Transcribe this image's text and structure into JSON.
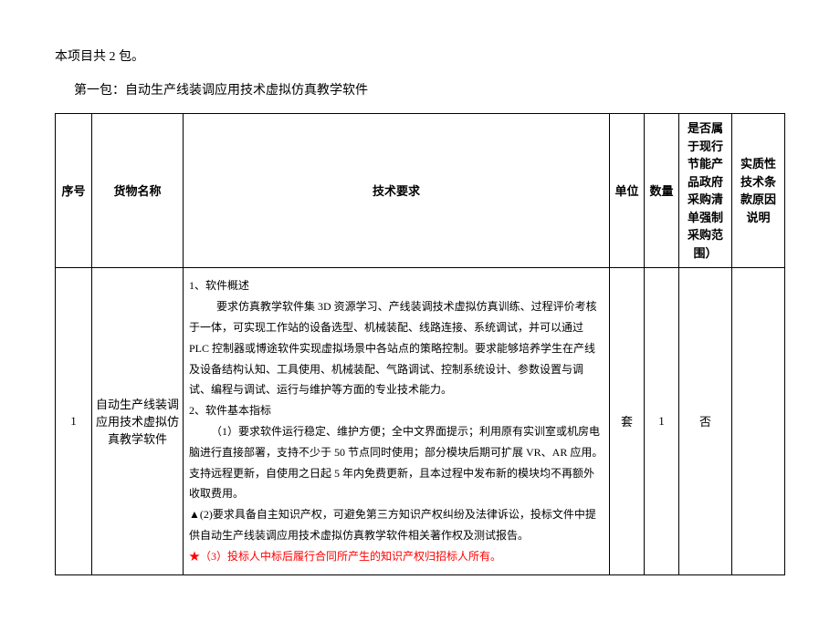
{
  "intro": "本项目共 2 包。",
  "subtitle": "第一包：自动生产线装调应用技术虚拟仿真教学软件",
  "headers": {
    "seq": "序号",
    "name": "货物名称",
    "req": "技术要求",
    "unit": "单位",
    "qty": "数量",
    "scope": "是否属于现行节能产品政府采购清单强制采购范围）",
    "reason": "实质性技术条款原因说明"
  },
  "row": {
    "seq": "1",
    "name": "自动生产线装调应用技术虚拟仿真教学软件",
    "unit": "套",
    "qty": "1",
    "scope": "否",
    "reason": "",
    "req": {
      "h1": "1、软件概述",
      "p1": "要求仿真教学软件集 3D 资源学习、产线装调技术虚拟仿真训练、过程评价考核于一体，可实现工作站的设备选型、机械装配、线路连接、系统调试，并可以通过 PLC 控制器或博途软件实现虚拟场景中各站点的策略控制。要求能够培养学生在产线及设备结构认知、工具使用、机械装配、气路调试、控制系统设计、参数设置与调试、编程与调试、运行与维护等方面的专业技术能力。",
      "h2": "2、软件基本指标",
      "p2a": "（1）要求软件运行稳定、维护方便；全中文界面提示；利用原有实训室或机房电脑进行直接部署，支持不少于 50 节点同时使用；部分模块后期可扩展 VR、AR 应用。支持远程更新，自使用之日起 5 年内免费更新，且本过程中发布新的模块均不再额外收取费用。",
      "p2b": "▲(2)要求具备自主知识产权，可避免第三方知识产权纠纷及法律诉讼，投标文件中提供自动生产线装调应用技术虚拟仿真教学软件相关著作权及测试报告。",
      "p2c": "★（3）投标人中标后履行合同所产生的知识产权归招标人所有。"
    }
  },
  "colors": {
    "text": "#000000",
    "highlight": "#ff0000",
    "bg": "#ffffff",
    "border": "#000000"
  }
}
